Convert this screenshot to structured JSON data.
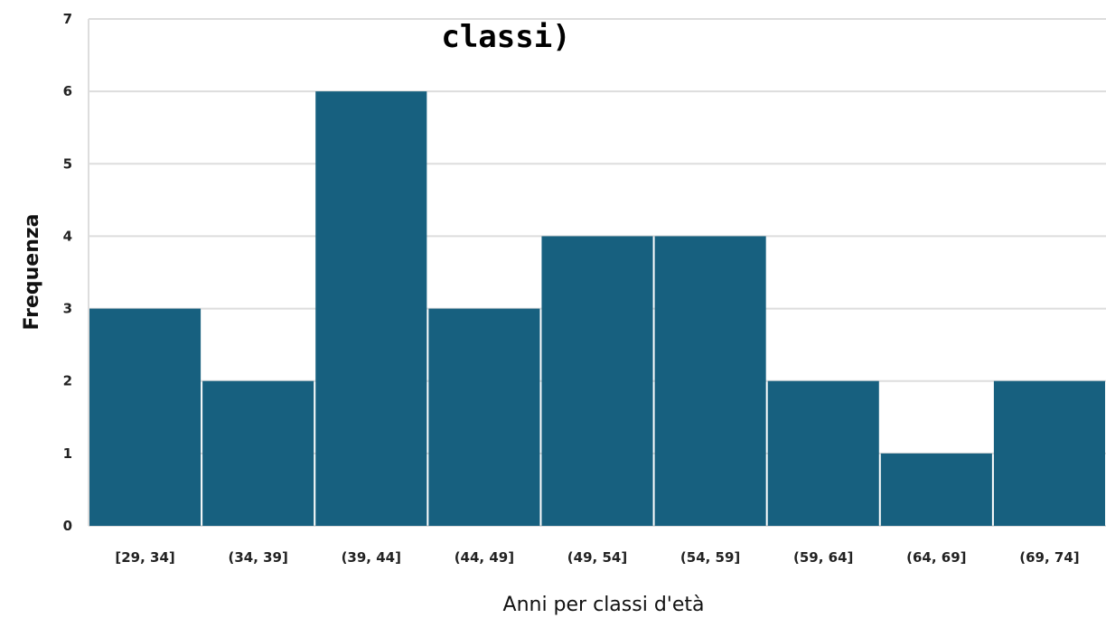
{
  "chart_data": {
    "type": "bar",
    "title": "classi)",
    "xlabel": "Anni  per classi d'età",
    "ylabel": "Frequenza",
    "categories": [
      "[29, 34]",
      "(34, 39]",
      "(39, 44]",
      "(44, 49]",
      "(49, 54]",
      "(54, 59]",
      "(59, 64]",
      "(64, 69]",
      "(69, 74]"
    ],
    "values": [
      3,
      2,
      6,
      3,
      4,
      4,
      2,
      1,
      2
    ],
    "ylim": [
      0,
      7
    ],
    "yticks": [
      0,
      1,
      2,
      3,
      4,
      5,
      6,
      7
    ],
    "grid": true,
    "bar_color": "#17607f",
    "grid_color": "#dddddd"
  }
}
